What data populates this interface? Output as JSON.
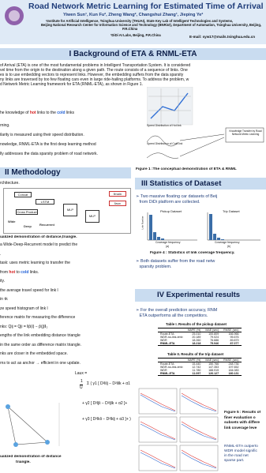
{
  "header": {
    "title": "Road Network Metric Learning for Estimated Time of Arrival",
    "authors": "Yiwen Sun¹, Kun Fu², Zheng Wang², Changshui Zhang¹, Jieping Ye²",
    "affiliations": [
      "¹Institute for Artificial Intelligence, Tsinghua University (THUAI), State Key Lab of Intelligent Technologies and Systems,",
      "Beijing National Research Center for Information Science and Technology (BNRist), Department of Automation, Tsinghua University, Beijing,",
      "P.R.China",
      "²DiDi AI Labs, Beijing, P.R.China"
    ],
    "email": "E-mail: syw17@mails.tsinghua.edu.cn"
  },
  "background": {
    "heading": "I Background of ETA & RNML-ETA",
    "paragraph": [
      "of Arrival (ETA) is one of the most fundamental problems in Intelligent Transportation System. It is considered",
      "vel time from the origin to the destination along a given path. The route consists of a sequence of links. One",
      "es is to use embedding vectors to represent links. However, the embedding suffers from the data sparsity",
      "ny links are traversed by too few floating cars even in large ride-hailing platforms. To address the problem, w",
      "d Network Metric Learning framework for ETA (RNML-ETA), as shown in Figure 1."
    ],
    "bullet1": {
      "pre": "he knowledge of ",
      "hot": "hot",
      "mid": " links to the ",
      "cold": "cold",
      "post": " links"
    },
    "lines": [
      "rning.",
      "ilarity is measured using their speed distribution.",
      "nowledge, RNML-ETA is the first deep learning method",
      "lly addresses the data sparsity problem of road network."
    ],
    "figure_labels": [
      "Speed Distribution of Hot link",
      "Speed Distribution of Cold link",
      "Knowledge Transfer by Road Network Metric Learning"
    ],
    "figure_caption": "Figure 1 :The conceptual demonstration of ETA & RNML"
  },
  "methodology": {
    "heading": "II Methodology",
    "intro": "rchitecture.",
    "diagram": [
      "Concat",
      "LSTM",
      "Cross Product",
      "Wide",
      "Deep",
      "MLP",
      "Recurrent",
      "MLP",
      "ℓmain",
      "ℓaux"
    ],
    "figure_caption": [
      "ualized demonstration of distance",
      "triangle."
    ],
    "lines": [
      "a Wide-Deep-Recurrent model to predict the",
      ".",
      "task: uses metric learning to transfer the",
      "ity.",
      "the average travel speed for link l",
      "in τk",
      "ze speed histogram of link l",
      "ference matrix for measuring the difference",
      "nks: Qij = Qji = ‖p̂(i) − p̂(j)‖₂",
      "engths of the link embedding distance triangle",
      "in the same order as difference matrix triangle.",
      "nks are closer in the embedded space.",
      "rns to act as anchor → efficient in one update."
    ],
    "transfer": {
      "pre": "from ",
      "hot": "hot",
      "mid": " to ",
      "cold": "cold",
      "post": " links."
    },
    "formula": [
      "Laux =",
      "1",
      "U",
      "Σ ( γ1 [ D²lilj − D²lilk + α1 ]+",
      "+ γ2 [ D²ljli − D²ljlk + α2 ]+",
      "+ γ3 [ D²lkli − D²lklj + α3 ]+ )"
    ]
  },
  "statistics": {
    "heading": "III Statistics of Dataset",
    "bullet1": [
      "Two massive floating car datasets of Beij",
      "from DiDi platform are collected."
    ],
    "panels": [
      "Pickup Dataset",
      "Trip Dataset"
    ],
    "panel_tags": [
      "(a)",
      "(b)"
    ],
    "x_label": "Coverage frequency",
    "y_label": "Link Number",
    "figure_caption": "Figure 4 : Statistics of link coverage frequency.",
    "bullet2": [
      "Both datasets suffer from the road netw",
      "sparsity problem."
    ]
  },
  "results": {
    "heading": "IV Experimental results",
    "bullet1": [
      "For the overall prediction accuracy, RNM",
      "ETA outperforms all the competitors."
    ],
    "table1": {
      "title": "Table I. Results of the pickup dataset",
      "header": [
        "",
        "MAPE (%)",
        "MAE (sec)",
        "RMSE (sec)"
      ],
      "rows": [
        [
          "Route-ETA",
          "25.010",
          "100.809",
          "166.966"
        ],
        [
          "WDR-no-link-emb",
          "20.189",
          "79.024",
          "95.676"
        ],
        [
          "WDR",
          "18.260",
          "76.686",
          "89.879"
        ],
        [
          "RNML-ETA",
          "18.218",
          "75.946",
          "87.077"
        ]
      ]
    },
    "table2": {
      "title": "Table II. Results of the trip dataset",
      "header": [
        "",
        "MAPE (%)",
        "MAE (sec)",
        "RMSE (sec)"
      ],
      "rows": [
        [
          "Route-ETA",
          "15.440",
          "150.766",
          "248.736"
        ],
        [
          "WDR-no-link-emb",
          "12.742",
          "147.353",
          "197.652"
        ],
        [
          "WDR",
          "11.780",
          "188.919",
          "184.083"
        ],
        [
          "RNML-ETA",
          "11.097",
          "126.127",
          "180.131"
        ]
      ]
    },
    "figure_caption": [
      "Figure 5 : Results of",
      "finer evaluation o",
      "subsets with differe",
      "link coverage leve"
    ],
    "bullet2": [
      "RNML-ETA outperfo",
      "WDR model signific",
      "in the road net",
      "sparse part."
    ]
  }
}
